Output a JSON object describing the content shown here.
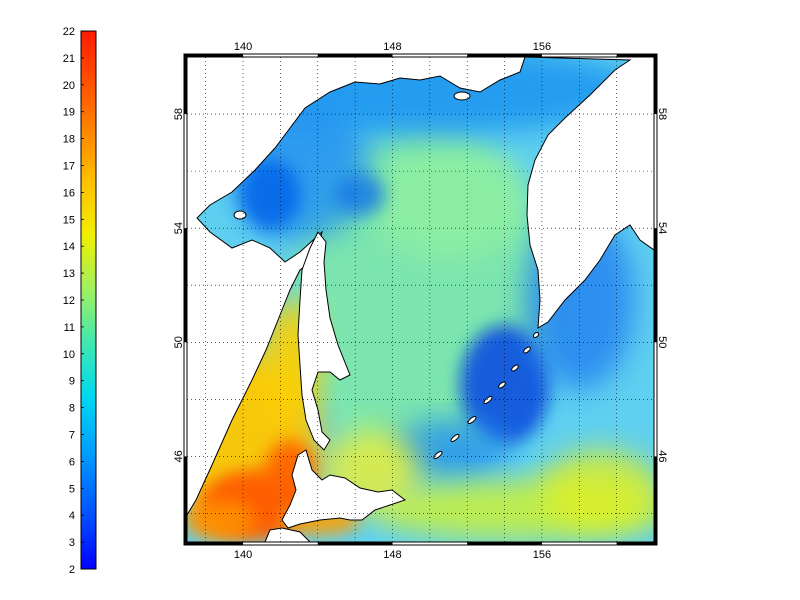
{
  "colorbar": {
    "labels": [
      "22",
      "21",
      "20",
      "19",
      "18",
      "17",
      "16",
      "15",
      "14",
      "13",
      "12",
      "11",
      "10",
      "9",
      "8",
      "7",
      "6",
      "5",
      "4",
      "3",
      "2"
    ],
    "range": [
      2,
      22
    ],
    "colors": [
      "#1a1aff",
      "#0060ff",
      "#0098ff",
      "#00c0ff",
      "#20d8d0",
      "#70e890",
      "#b0f060",
      "#e8f020",
      "#ffe000",
      "#ffb000",
      "#ff8000",
      "#ff5000",
      "#ff2000"
    ]
  },
  "map": {
    "top_labels": [
      "140",
      "148",
      "156"
    ],
    "bottom_labels": [
      "140",
      "148",
      "156"
    ],
    "left_labels": [
      "58",
      "54",
      "50",
      "46"
    ],
    "right_labels": [
      "58",
      "54",
      "50",
      "46"
    ],
    "lon_range": [
      137,
      162
    ],
    "lat_range": [
      43,
      60
    ],
    "land_color": "#ffffff",
    "ocean_base": "#50c8ff"
  }
}
